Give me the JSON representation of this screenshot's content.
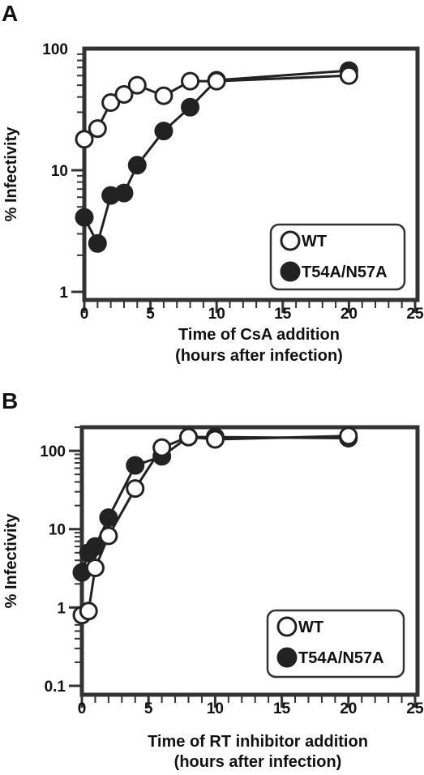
{
  "chart_data": [
    {
      "type": "line",
      "panel": "A",
      "xlabel": "Time of CsA addition",
      "xlabel2": "(hours after infection)",
      "ylabel": "% Infectivity",
      "yscale": "log",
      "xlim": [
        0,
        25
      ],
      "ylim": [
        1,
        100
      ],
      "xticks": [
        "0",
        "5",
        "10",
        "15",
        "20",
        "25"
      ],
      "yticks": [
        "1",
        "10",
        "100"
      ],
      "legend": "bottom-right",
      "series": [
        {
          "name": "WT",
          "marker": "open-circle",
          "color": "#ffffff",
          "x": [
            0,
            1,
            2,
            3,
            4,
            6,
            8,
            10,
            20
          ],
          "y": [
            18,
            22,
            36,
            42,
            50,
            41,
            54,
            54,
            60
          ]
        },
        {
          "name": "T54A/N57A",
          "marker": "filled-circle",
          "color": "#222222",
          "x": [
            0,
            1,
            2,
            3,
            4,
            6,
            8,
            10,
            20
          ],
          "y": [
            4.1,
            2.5,
            6.2,
            6.5,
            11,
            21,
            33,
            55,
            66
          ]
        }
      ]
    },
    {
      "type": "line",
      "panel": "B",
      "xlabel": "Time of RT inhibitor addition",
      "xlabel2": "(hours after infection)",
      "ylabel": "% Infectivity",
      "yscale": "log",
      "xlim": [
        0,
        25
      ],
      "ylim": [
        0.1,
        200
      ],
      "xticks": [
        "0",
        "5",
        "10",
        "15",
        "20",
        "25"
      ],
      "yticks": [
        "0.1",
        "1",
        "10",
        "100"
      ],
      "legend": "bottom-right",
      "series": [
        {
          "name": "WT",
          "marker": "open-circle",
          "color": "#ffffff",
          "x": [
            0,
            0.5,
            1,
            2,
            4,
            6,
            8,
            10,
            20
          ],
          "y": [
            0.8,
            0.9,
            3.2,
            8.2,
            33,
            110,
            150,
            140,
            155
          ]
        },
        {
          "name": "T54A/N57A",
          "marker": "filled-circle",
          "color": "#222222",
          "x": [
            0,
            0.5,
            1,
            2,
            4,
            6,
            8,
            10,
            20
          ],
          "y": [
            2.8,
            5.0,
            6.0,
            14,
            65,
            85,
            150,
            150,
            145
          ]
        }
      ]
    }
  ]
}
